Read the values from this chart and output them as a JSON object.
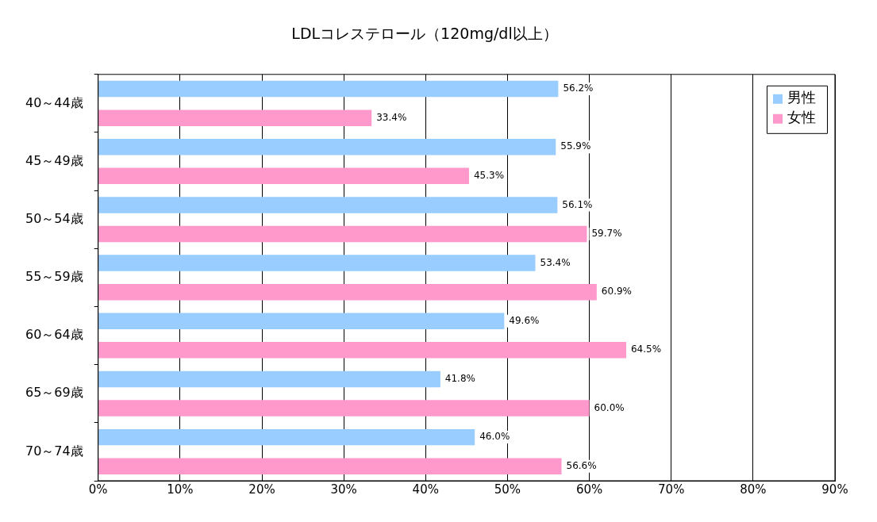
{
  "chart_data": {
    "type": "bar",
    "orientation": "horizontal",
    "title": "LDLコレステロール（120mg/dl以上）",
    "categories": [
      "40～44歳",
      "45～49歳",
      "50～54歳",
      "55～59歳",
      "60～64歳",
      "65～69歳",
      "70～74歳"
    ],
    "series": [
      {
        "name": "男性",
        "color": "#99ccff",
        "values": [
          56.2,
          55.9,
          56.1,
          53.4,
          49.6,
          41.8,
          46
        ],
        "value_labels": [
          "56.2%",
          "55.9%",
          "56.1%",
          "53.4%",
          "49.6%",
          "41.8%",
          "46.0%"
        ]
      },
      {
        "name": "女性",
        "color": "#ff99cc",
        "values": [
          33.4,
          45.3,
          59.7,
          60.9,
          64.5,
          60,
          56.6
        ],
        "value_labels": [
          "33.4%",
          "45.3%",
          "59.7%",
          "60.9%",
          "64.5%",
          "60.0%",
          "56.6%"
        ]
      }
    ],
    "xlim": [
      0,
      90
    ],
    "xticks": [
      {
        "value": 0,
        "label": "0%"
      },
      {
        "value": 10,
        "label": "10%"
      },
      {
        "value": 20,
        "label": "20%"
      },
      {
        "value": 30,
        "label": "30%"
      },
      {
        "value": 40,
        "label": "40%"
      },
      {
        "value": 50,
        "label": "50%"
      },
      {
        "value": 60,
        "label": "60%"
      },
      {
        "value": 70,
        "label": "70%"
      },
      {
        "value": 80,
        "label": "80%"
      },
      {
        "value": 90,
        "label": "90%"
      }
    ],
    "grid": "x",
    "legend": "top right"
  }
}
